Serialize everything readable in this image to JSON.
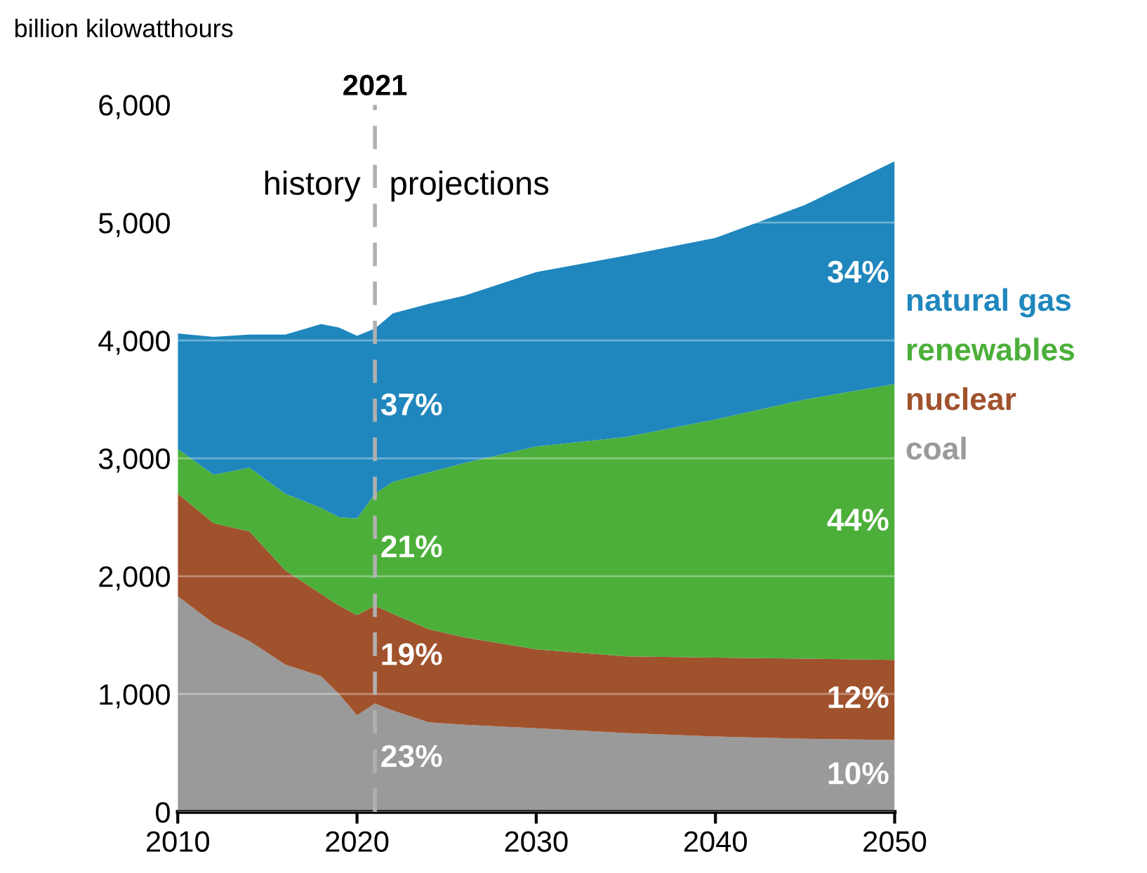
{
  "chart_data": {
    "type": "area",
    "stacked": true,
    "ylabel": "billion kilowatthours",
    "x": [
      2010,
      2012,
      2014,
      2016,
      2018,
      2019,
      2020,
      2021,
      2022,
      2024,
      2026,
      2030,
      2035,
      2040,
      2045,
      2050
    ],
    "series": [
      {
        "name": "coal",
        "color": "#9a9a9a",
        "values": [
          1830,
          1600,
          1450,
          1250,
          1150,
          1000,
          820,
          920,
          860,
          760,
          740,
          710,
          670,
          640,
          620,
          610
        ]
      },
      {
        "name": "nuclear",
        "color": "#a0522d",
        "values": [
          870,
          850,
          930,
          800,
          700,
          750,
          850,
          830,
          820,
          790,
          740,
          670,
          650,
          670,
          680,
          680
        ]
      },
      {
        "name": "renewables",
        "color": "#4caf3a",
        "values": [
          380,
          410,
          540,
          650,
          730,
          750,
          820,
          950,
          1120,
          1330,
          1480,
          1720,
          1860,
          2020,
          2200,
          2340
        ]
      },
      {
        "name": "natural gas",
        "color": "#1f87bd",
        "values": [
          980,
          1170,
          1130,
          1350,
          1560,
          1610,
          1550,
          1400,
          1430,
          1430,
          1420,
          1480,
          1540,
          1540,
          1650,
          1890
        ]
      }
    ],
    "xlim": [
      2010,
      2050
    ],
    "xticks": [
      2010,
      2020,
      2030,
      2040,
      2050
    ],
    "ylim": [
      0,
      6000
    ],
    "yticks": [
      0,
      {
        "value": 1000,
        "label": "1,000"
      },
      {
        "value": 2000,
        "label": "2,000"
      },
      {
        "value": 3000,
        "label": "3,000"
      },
      {
        "value": 4000,
        "label": "4,000"
      },
      {
        "value": 5000,
        "label": "5,000"
      },
      {
        "value": 6000,
        "label": "6,000"
      }
    ],
    "grid": "y",
    "ref_lines": [
      {
        "axis": "x",
        "value": 2021,
        "label": "2021",
        "color": "#b0b0b0",
        "line_style": "dashed"
      }
    ],
    "annotations": [
      "history",
      "projections",
      "37%",
      "21%",
      "19%",
      "23%",
      "34%",
      "44%",
      "12%",
      "10%"
    ]
  }
}
